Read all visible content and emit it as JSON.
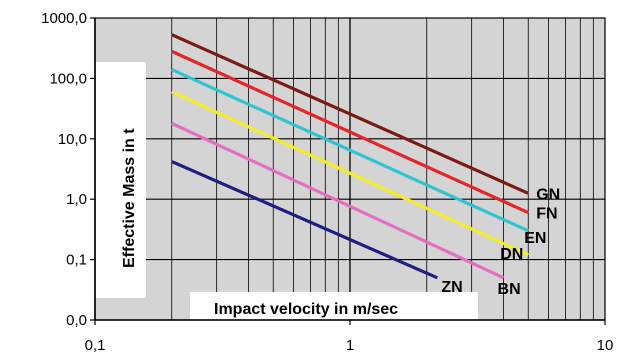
{
  "chart_data": {
    "type": "line",
    "x_scale": "log",
    "y_scale": "log",
    "xlim": [
      0.1,
      10
    ],
    "ylim": [
      0.01,
      1000
    ],
    "grid": true,
    "xlabel": "Impact velocity in m/sec",
    "ylabel": "Effective Mass in t",
    "x_ticks": [
      {
        "value": 0.1,
        "label": "0,1"
      },
      {
        "value": 1,
        "label": "1"
      },
      {
        "value": 10,
        "label": "10"
      }
    ],
    "y_ticks": [
      {
        "value": 0.01,
        "label": "0,0"
      },
      {
        "value": 0.1,
        "label": "0,1"
      },
      {
        "value": 1,
        "label": "1,0"
      },
      {
        "value": 10,
        "label": "10,0"
      },
      {
        "value": 100,
        "label": "100,0"
      },
      {
        "value": 1000,
        "label": "1000,0"
      }
    ],
    "series": [
      {
        "name": "GN",
        "color": "#7a1a14",
        "x": [
          0.2,
          5
        ],
        "y": [
          530,
          1.25
        ]
      },
      {
        "name": "FN",
        "color": "#e3262a",
        "x": [
          0.2,
          5
        ],
        "y": [
          280,
          0.6
        ]
      },
      {
        "name": "EN",
        "color": "#2fc4d0",
        "x": [
          0.2,
          5
        ],
        "y": [
          140,
          0.3
        ]
      },
      {
        "name": "DN",
        "color": "#f2ec2a",
        "x": [
          0.2,
          5
        ],
        "y": [
          60,
          0.12
        ]
      },
      {
        "name": "BN",
        "color": "#e36fc2",
        "x": [
          0.2,
          4
        ],
        "y": [
          18,
          0.05
        ]
      },
      {
        "name": "ZN",
        "color": "#1d1f7e",
        "x": [
          0.2,
          2.2
        ],
        "y": [
          4.2,
          0.05
        ]
      }
    ]
  }
}
